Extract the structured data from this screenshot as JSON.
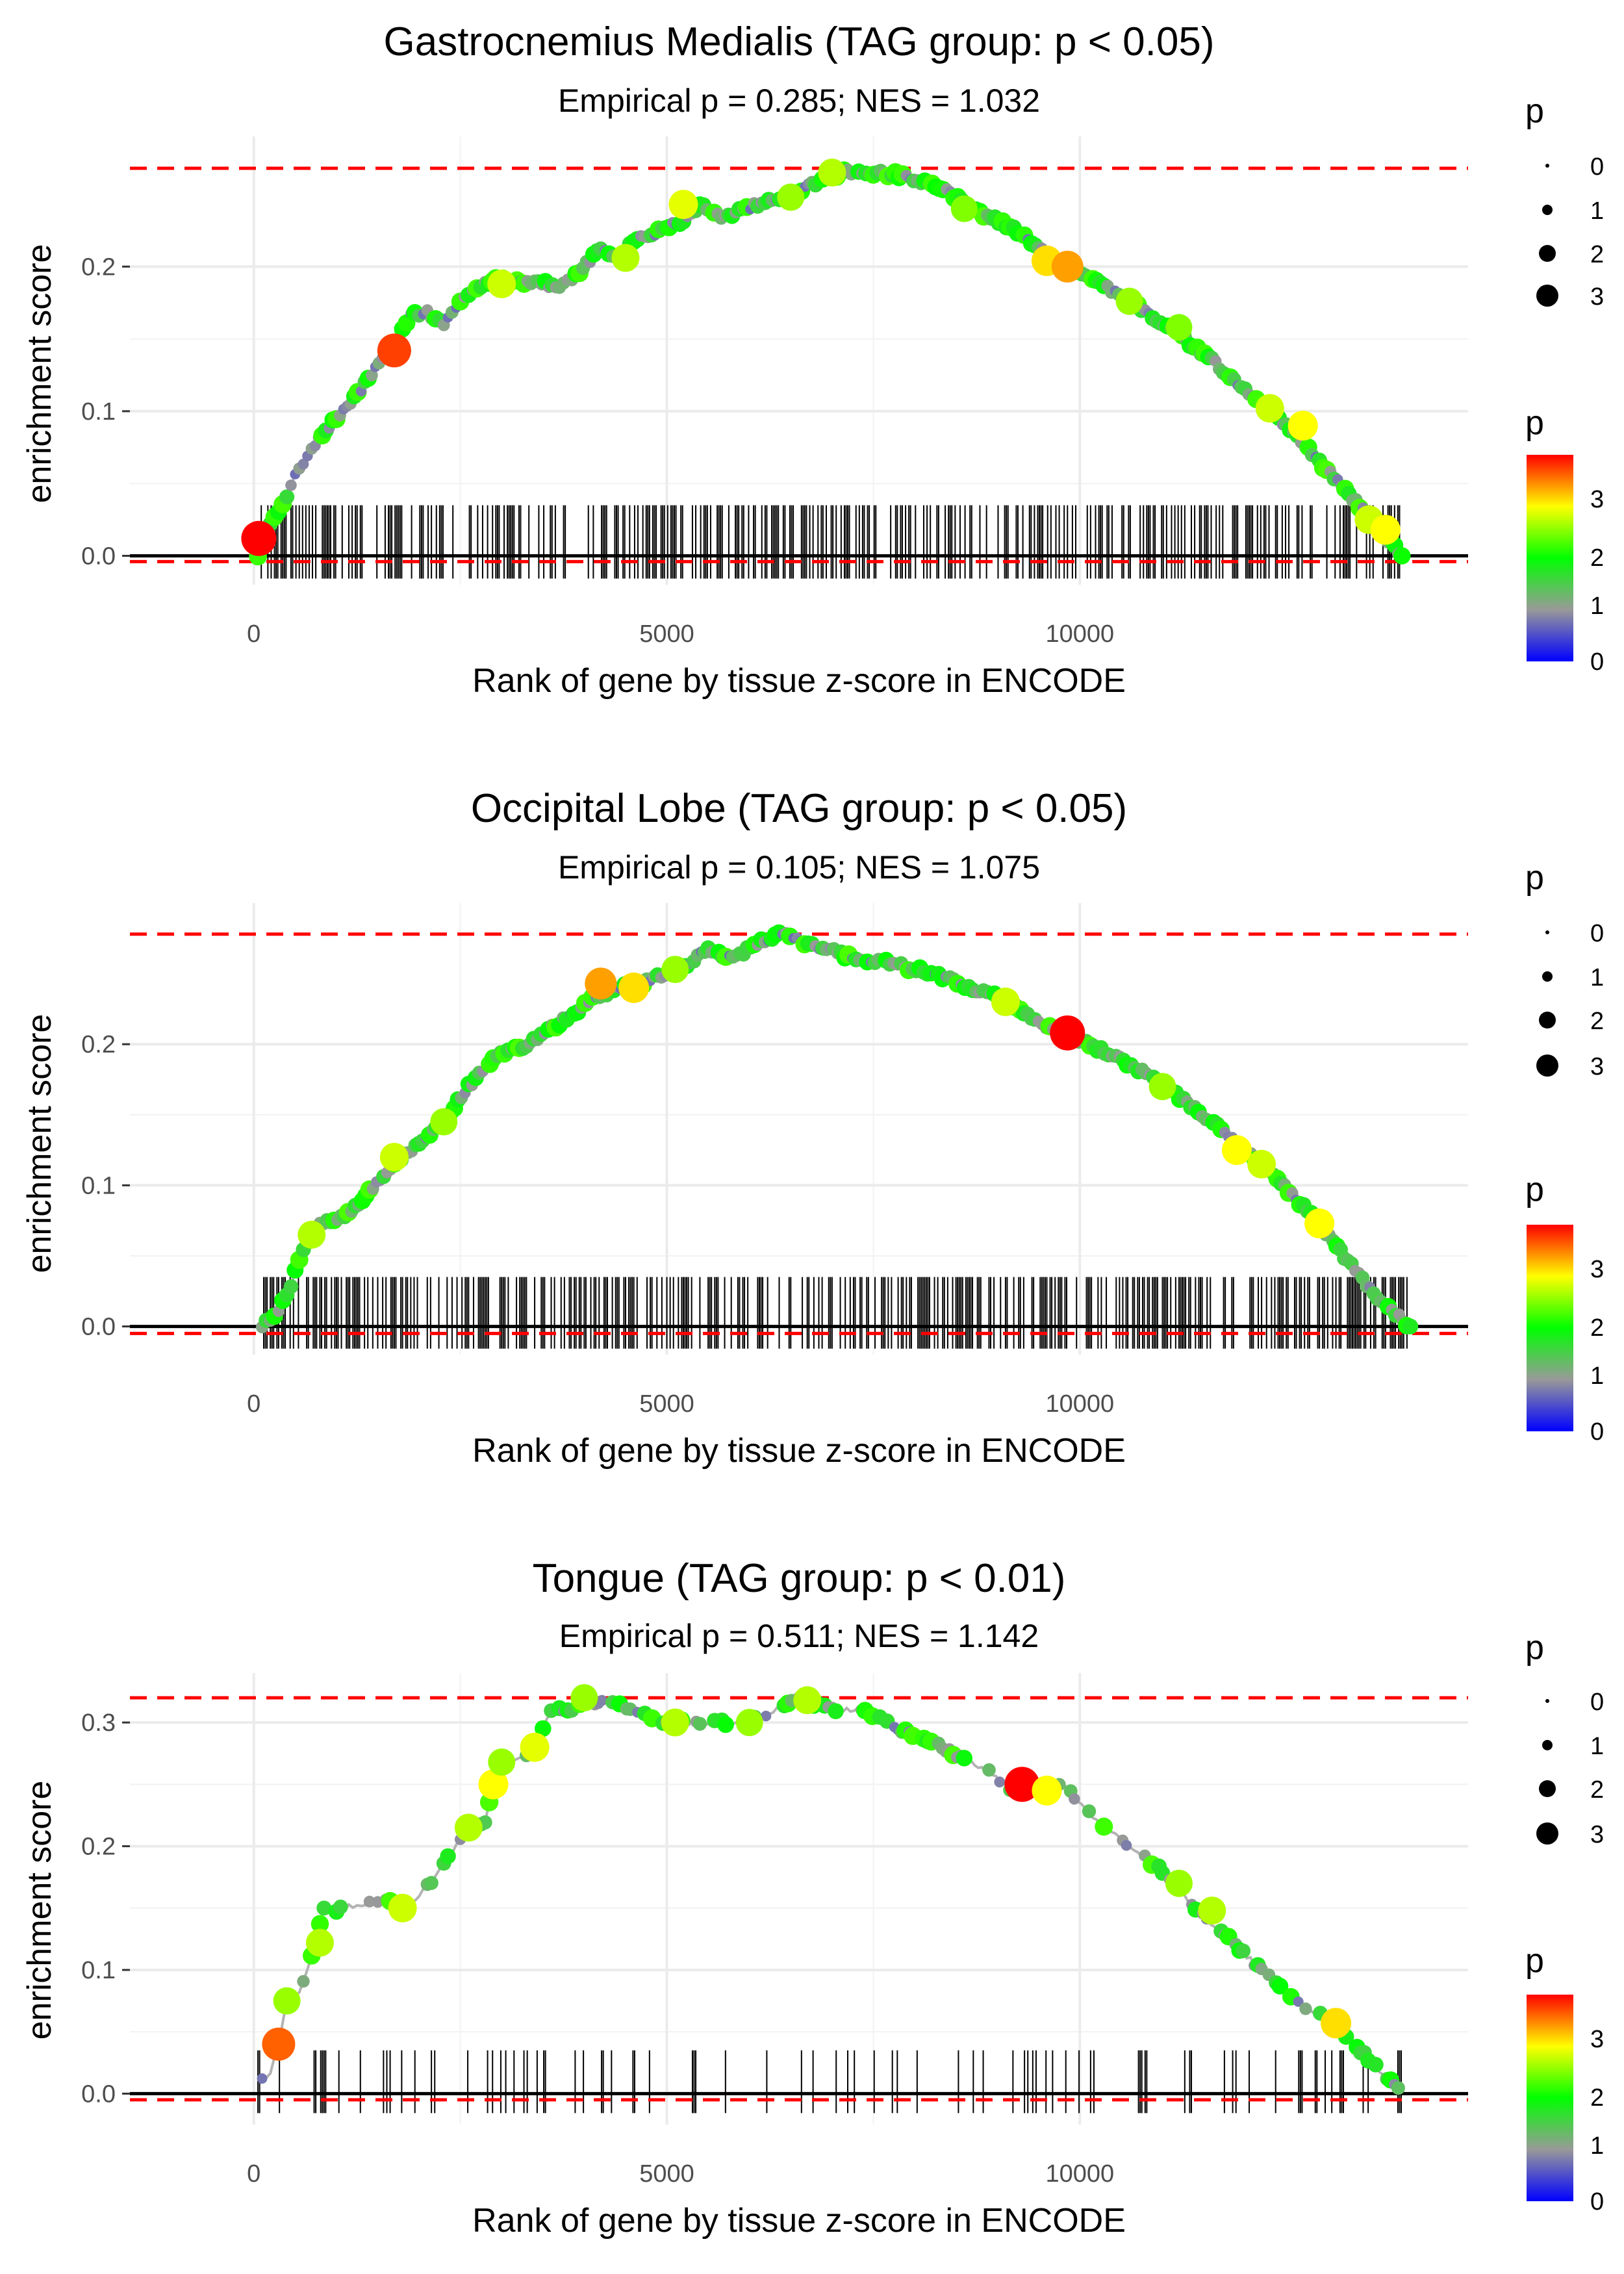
{
  "chart_data": [
    {
      "type": "line",
      "title": "Gastrocnemius Medialis (TAG group: p < 0.05)",
      "subtitle": "Empirical p = 0.285; NES = 1.032",
      "xlabel": "Rank of gene by tissue z-score in ENCODE",
      "ylabel": "enrichment score",
      "xlim": [
        -1500,
        14700
      ],
      "ylim": [
        -0.02,
        0.29
      ],
      "x_ticks": [
        0,
        5000,
        10000
      ],
      "x_tick_labels": [
        "0",
        "5000",
        "10000"
      ],
      "y_ticks": [
        0.0,
        0.1,
        0.2
      ],
      "y_tick_labels": [
        "0.0",
        "0.1",
        "0.2"
      ],
      "max_es": 0.268,
      "min_es": -0.004,
      "rug_density": 0.42,
      "rug_height": 0.035,
      "series_es": [
        [
          50,
          0.0
        ],
        [
          150,
          0.02
        ],
        [
          300,
          0.03
        ],
        [
          500,
          0.055
        ],
        [
          700,
          0.075
        ],
        [
          1000,
          0.095
        ],
        [
          1300,
          0.115
        ],
        [
          1600,
          0.14
        ],
        [
          1800,
          0.155
        ],
        [
          1900,
          0.168
        ],
        [
          2100,
          0.168
        ],
        [
          2300,
          0.16
        ],
        [
          2400,
          0.168
        ],
        [
          2600,
          0.18
        ],
        [
          2800,
          0.19
        ],
        [
          3100,
          0.19
        ],
        [
          3400,
          0.19
        ],
        [
          3700,
          0.185
        ],
        [
          3900,
          0.195
        ],
        [
          4200,
          0.212
        ],
        [
          4400,
          0.205
        ],
        [
          4600,
          0.218
        ],
        [
          4900,
          0.224
        ],
        [
          5200,
          0.232
        ],
        [
          5400,
          0.242
        ],
        [
          5700,
          0.234
        ],
        [
          6100,
          0.243
        ],
        [
          6500,
          0.25
        ],
        [
          6800,
          0.258
        ],
        [
          7100,
          0.265
        ],
        [
          7500,
          0.265
        ],
        [
          7900,
          0.263
        ],
        [
          8300,
          0.255
        ],
        [
          8700,
          0.24
        ],
        [
          9200,
          0.226
        ],
        [
          9500,
          0.213
        ],
        [
          9800,
          0.2
        ],
        [
          10200,
          0.19
        ],
        [
          10700,
          0.172
        ],
        [
          11200,
          0.153
        ],
        [
          11600,
          0.135
        ],
        [
          12000,
          0.115
        ],
        [
          12500,
          0.09
        ],
        [
          12900,
          0.065
        ],
        [
          13300,
          0.04
        ],
        [
          13600,
          0.02
        ],
        [
          13900,
          0.0
        ]
      ],
      "highlight_points": [
        [
          60,
          0.012,
          3.8
        ],
        [
          1700,
          0.142,
          3.6
        ],
        [
          3000,
          0.188,
          2.8
        ],
        [
          4500,
          0.206,
          2.7
        ],
        [
          5200,
          0.243,
          2.9
        ],
        [
          6500,
          0.248,
          2.6
        ],
        [
          7000,
          0.265,
          2.7
        ],
        [
          8600,
          0.24,
          2.5
        ],
        [
          9600,
          0.204,
          3.1
        ],
        [
          9850,
          0.2,
          3.3
        ],
        [
          10600,
          0.176,
          2.6
        ],
        [
          11200,
          0.158,
          2.5
        ],
        [
          12300,
          0.102,
          2.8
        ],
        [
          12700,
          0.09,
          3.0
        ],
        [
          13500,
          0.025,
          2.8
        ],
        [
          13700,
          0.018,
          3.0
        ]
      ],
      "legend_size": {
        "title": "p",
        "labels": [
          "0",
          "1",
          "2",
          "3"
        ]
      },
      "legend_color": {
        "title": "p",
        "labels": [
          "3",
          "2",
          "1",
          "0"
        ],
        "colors": [
          "#0000ff",
          "#999999",
          "#00ff00",
          "#ffff00",
          "#ff0000"
        ]
      }
    },
    {
      "type": "line",
      "title": "Occipital Lobe (TAG group: p < 0.05)",
      "subtitle": "Empirical p = 0.105; NES = 1.075",
      "xlabel": "Rank of gene by tissue z-score in ENCODE",
      "ylabel": "enrichment score",
      "xlim": [
        -1500,
        14700
      ],
      "ylim": [
        -0.02,
        0.3
      ],
      "x_ticks": [
        0,
        5000,
        10000
      ],
      "x_tick_labels": [
        "0",
        "5000",
        "10000"
      ],
      "y_ticks": [
        0.0,
        0.1,
        0.2
      ],
      "y_tick_labels": [
        "0.0",
        "0.1",
        "0.2"
      ],
      "max_es": 0.278,
      "min_es": -0.005,
      "rug_density": 0.5,
      "rug_height": 0.035,
      "series_es": [
        [
          100,
          0.0
        ],
        [
          300,
          0.01
        ],
        [
          450,
          0.03
        ],
        [
          600,
          0.055
        ],
        [
          800,
          0.072
        ],
        [
          1100,
          0.078
        ],
        [
          1400,
          0.095
        ],
        [
          1700,
          0.115
        ],
        [
          2000,
          0.13
        ],
        [
          2300,
          0.145
        ],
        [
          2600,
          0.17
        ],
        [
          2900,
          0.19
        ],
        [
          3300,
          0.2
        ],
        [
          3700,
          0.215
        ],
        [
          4100,
          0.232
        ],
        [
          4400,
          0.24
        ],
        [
          4800,
          0.245
        ],
        [
          5200,
          0.255
        ],
        [
          5500,
          0.268
        ],
        [
          5800,
          0.26
        ],
        [
          6100,
          0.272
        ],
        [
          6400,
          0.278
        ],
        [
          6800,
          0.27
        ],
        [
          7200,
          0.262
        ],
        [
          7700,
          0.258
        ],
        [
          8200,
          0.25
        ],
        [
          8700,
          0.24
        ],
        [
          9100,
          0.232
        ],
        [
          9500,
          0.215
        ],
        [
          9900,
          0.205
        ],
        [
          10300,
          0.195
        ],
        [
          10800,
          0.18
        ],
        [
          11300,
          0.158
        ],
        [
          11800,
          0.135
        ],
        [
          12300,
          0.11
        ],
        [
          12800,
          0.08
        ],
        [
          13200,
          0.05
        ],
        [
          13600,
          0.02
        ],
        [
          14000,
          0.0
        ]
      ],
      "highlight_points": [
        [
          700,
          0.065,
          2.7
        ],
        [
          1700,
          0.12,
          2.8
        ],
        [
          2300,
          0.145,
          2.6
        ],
        [
          4200,
          0.243,
          3.3
        ],
        [
          4600,
          0.24,
          3.1
        ],
        [
          5100,
          0.253,
          2.6
        ],
        [
          9100,
          0.23,
          2.8
        ],
        [
          9850,
          0.208,
          3.8
        ],
        [
          11000,
          0.17,
          2.6
        ],
        [
          11900,
          0.125,
          3.0
        ],
        [
          12200,
          0.115,
          2.8
        ],
        [
          12900,
          0.073,
          3.0
        ]
      ],
      "legend_size": {
        "title": "p",
        "labels": [
          "0",
          "1",
          "2",
          "3"
        ]
      },
      "legend_color": {
        "title": "p",
        "labels": [
          "3",
          "2",
          "1",
          "0"
        ],
        "colors": [
          "#0000ff",
          "#999999",
          "#00ff00",
          "#ffff00",
          "#ff0000"
        ]
      }
    },
    {
      "type": "line",
      "title": "Tongue (TAG group: p < 0.01)",
      "subtitle": "Empirical p = 0.511; NES = 1.142",
      "xlabel": "Rank of gene by tissue z-score in ENCODE",
      "ylabel": "enrichment score",
      "xlim": [
        -1500,
        14700
      ],
      "ylim": [
        -0.025,
        0.34
      ],
      "x_ticks": [
        0,
        5000,
        10000
      ],
      "x_tick_labels": [
        "0",
        "5000",
        "10000"
      ],
      "y_ticks": [
        0.0,
        0.1,
        0.2,
        0.3
      ],
      "y_tick_labels": [
        "0.0",
        "0.1",
        "0.2",
        "0.3"
      ],
      "max_es": 0.32,
      "min_es": -0.005,
      "rug_density": 0.14,
      "rug_height": 0.035,
      "series_es": [
        [
          50,
          0.01
        ],
        [
          200,
          0.015
        ],
        [
          300,
          0.04
        ],
        [
          400,
          0.075
        ],
        [
          550,
          0.08
        ],
        [
          650,
          0.1
        ],
        [
          750,
          0.122
        ],
        [
          850,
          0.15
        ],
        [
          1000,
          0.148
        ],
        [
          1200,
          0.152
        ],
        [
          1400,
          0.155
        ],
        [
          1600,
          0.158
        ],
        [
          1800,
          0.15
        ],
        [
          2000,
          0.16
        ],
        [
          2200,
          0.175
        ],
        [
          2400,
          0.195
        ],
        [
          2600,
          0.215
        ],
        [
          2800,
          0.22
        ],
        [
          2900,
          0.25
        ],
        [
          3000,
          0.27
        ],
        [
          3200,
          0.27
        ],
        [
          3400,
          0.28
        ],
        [
          3600,
          0.31
        ],
        [
          3800,
          0.31
        ],
        [
          4000,
          0.315
        ],
        [
          4300,
          0.318
        ],
        [
          4600,
          0.31
        ],
        [
          5000,
          0.3
        ],
        [
          5400,
          0.3
        ],
        [
          5800,
          0.3
        ],
        [
          6200,
          0.305
        ],
        [
          6600,
          0.32
        ],
        [
          7000,
          0.31
        ],
        [
          7400,
          0.31
        ],
        [
          7800,
          0.295
        ],
        [
          8200,
          0.285
        ],
        [
          8600,
          0.27
        ],
        [
          8900,
          0.26
        ],
        [
          9200,
          0.245
        ],
        [
          9400,
          0.25
        ],
        [
          9600,
          0.245
        ],
        [
          9800,
          0.25
        ],
        [
          10200,
          0.22
        ],
        [
          10700,
          0.195
        ],
        [
          11000,
          0.18
        ],
        [
          11400,
          0.15
        ],
        [
          11800,
          0.125
        ],
        [
          12200,
          0.1
        ],
        [
          12600,
          0.075
        ],
        [
          13000,
          0.06
        ],
        [
          13400,
          0.035
        ],
        [
          13900,
          0.0
        ]
      ],
      "highlight_points": [
        [
          300,
          0.04,
          3.5
        ],
        [
          400,
          0.075,
          2.6
        ],
        [
          800,
          0.122,
          2.7
        ],
        [
          1800,
          0.15,
          2.8
        ],
        [
          2900,
          0.25,
          3.0
        ],
        [
          3000,
          0.268,
          2.6
        ],
        [
          2600,
          0.215,
          2.7
        ],
        [
          3400,
          0.28,
          2.9
        ],
        [
          4000,
          0.32,
          2.6
        ],
        [
          5100,
          0.3,
          2.7
        ],
        [
          6000,
          0.3,
          2.6
        ],
        [
          6700,
          0.318,
          2.7
        ],
        [
          9300,
          0.25,
          3.8
        ],
        [
          9600,
          0.245,
          3.0
        ],
        [
          11200,
          0.17,
          2.6
        ],
        [
          11600,
          0.148,
          2.7
        ],
        [
          13100,
          0.057,
          3.1
        ]
      ],
      "legend_size": {
        "title": "p",
        "labels": [
          "0",
          "1",
          "2",
          "3"
        ]
      },
      "legend_color": {
        "title": "p",
        "labels": [
          "3",
          "2",
          "1",
          "0"
        ],
        "colors": [
          "#0000ff",
          "#999999",
          "#00ff00",
          "#ffff00",
          "#ff0000"
        ]
      }
    }
  ]
}
